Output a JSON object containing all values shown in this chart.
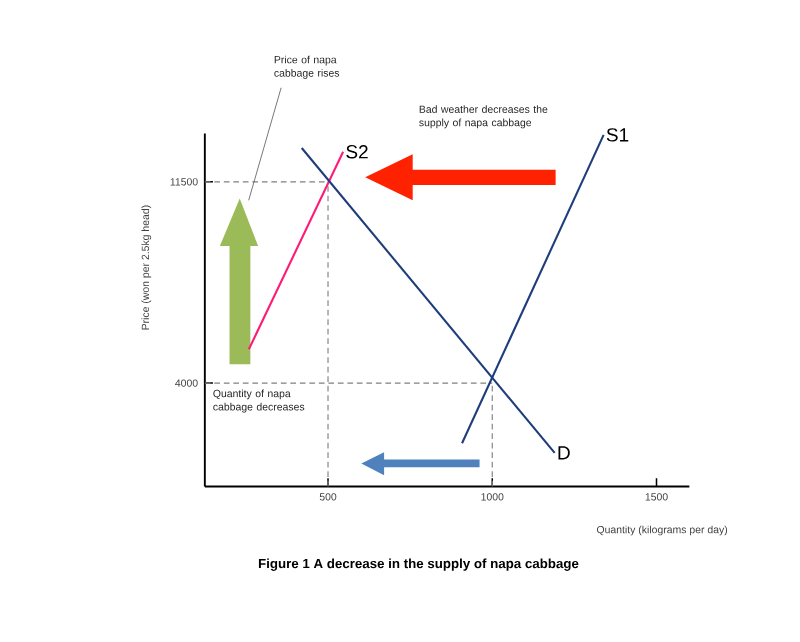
{
  "chart_data": {
    "type": "line",
    "title": "Figure 1 A decrease in the supply of napa cabbage",
    "xlabel": "Quantity (kilograms per day)",
    "ylabel": "Price (won per 2.5kg head)",
    "annotations": [
      "Price of napa cabbage rises",
      "Bad weather decreases the supply of napa cabbage",
      "Quantity of napa cabbage decreases"
    ],
    "xlim": [
      125,
      1600
    ],
    "ylim": [
      150,
      13300
    ],
    "xticks": [
      500,
      1000,
      1500
    ],
    "yticks": [
      4000,
      11500
    ],
    "series": [
      {
        "name": "S2",
        "color": "#ff1a75",
        "x": [
          259,
          546
        ],
        "values": [
          5260,
          12620
        ]
      },
      {
        "name": "D",
        "color": "#1f3d7a",
        "x": [
          420,
          1190
        ],
        "values": [
          12760,
          1400
        ]
      },
      {
        "name": "S1",
        "color": "#1f3d7a",
        "x": [
          908,
          1339
        ],
        "values": [
          1760,
          13250
        ]
      }
    ],
    "ref_lines": [
      {
        "axis": "x",
        "value": 500,
        "color": "#808080",
        "line_style": "dashed"
      },
      {
        "axis": "y",
        "value": 11500,
        "color": "#808080",
        "line_style": "dashed"
      },
      {
        "axis": "x",
        "value": 1000,
        "color": "#808080",
        "line_style": "dashed"
      },
      {
        "axis": "y",
        "value": 4000,
        "color": "#808080",
        "line_style": "dashed"
      }
    ]
  }
}
